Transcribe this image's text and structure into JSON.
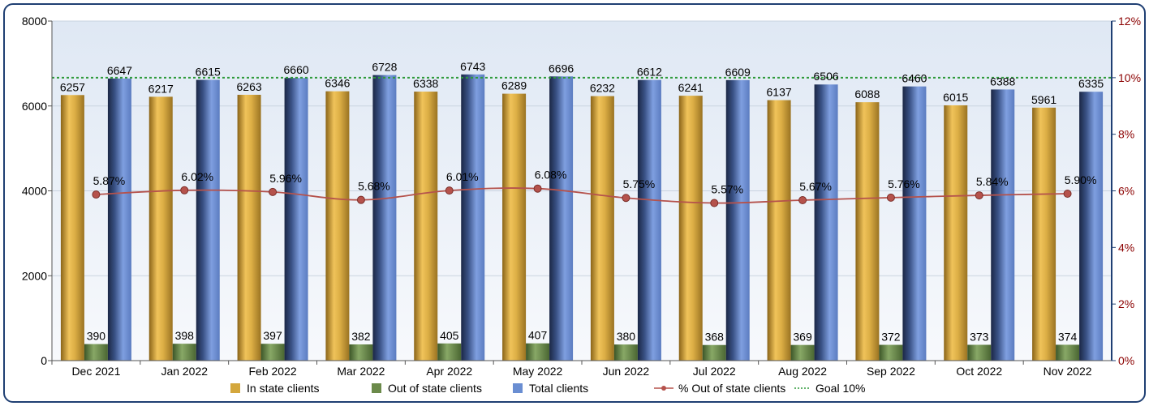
{
  "chart_data": {
    "type": "bar",
    "categories": [
      "Dec 2021",
      "Jan 2022",
      "Feb 2022",
      "Mar 2022",
      "Apr 2022",
      "May 2022",
      "Jun 2022",
      "Jul 2022",
      "Aug 2022",
      "Sep 2022",
      "Oct 2022",
      "Nov 2022"
    ],
    "series": [
      {
        "name": "In state clients",
        "type": "bar",
        "axis": "left",
        "color": "#d4a73c",
        "values": [
          6257,
          6217,
          6263,
          6346,
          6338,
          6289,
          6232,
          6241,
          6137,
          6088,
          6015,
          5961
        ]
      },
      {
        "name": "Out of state clients",
        "type": "bar",
        "axis": "left",
        "color": "#6b8a4a",
        "values": [
          390,
          398,
          397,
          382,
          405,
          407,
          380,
          368,
          369,
          372,
          373,
          374
        ]
      },
      {
        "name": "Total clients",
        "type": "bar",
        "axis": "left",
        "color": "#6a8ed2",
        "values": [
          6647,
          6615,
          6660,
          6728,
          6743,
          6696,
          6612,
          6609,
          6506,
          6460,
          6388,
          6335
        ]
      },
      {
        "name": "% Out of state clients",
        "type": "line",
        "axis": "right",
        "color": "#b5524c",
        "values": [
          5.87,
          6.02,
          5.96,
          5.68,
          6.01,
          6.08,
          5.75,
          5.57,
          5.67,
          5.76,
          5.84,
          5.9
        ],
        "labels": [
          "5.87%",
          "6.02%",
          "5.96%",
          "5.68%",
          "6.01%",
          "6.08%",
          "5.75%",
          "5.57%",
          "5.67%",
          "5.76%",
          "5.84%",
          "5.90%"
        ]
      },
      {
        "name": "Goal 10%",
        "type": "reference-line",
        "axis": "right",
        "color": "#2e9a3a",
        "value": 10
      }
    ],
    "y_left": {
      "min": 0,
      "max": 8000,
      "ticks": [
        "0",
        "2000",
        "4000",
        "6000",
        "8000"
      ]
    },
    "y_right": {
      "min": 0,
      "max": 12,
      "ticks": [
        "0%",
        "2%",
        "4%",
        "6%",
        "8%",
        "10%",
        "12%"
      ],
      "color": "#8b0000"
    },
    "grid": true,
    "legend_position": "bottom"
  }
}
